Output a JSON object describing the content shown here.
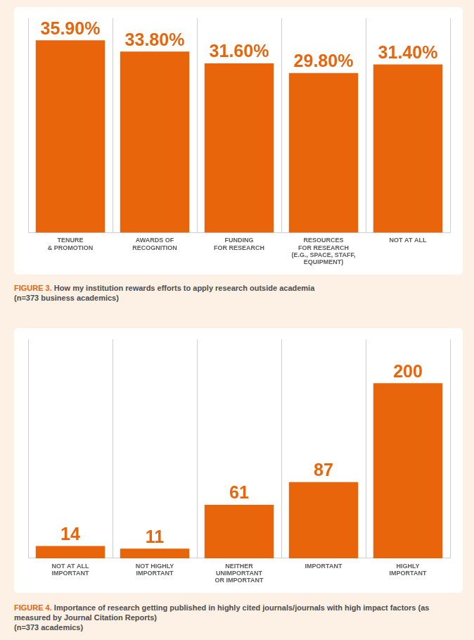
{
  "chart_data": [
    {
      "type": "bar",
      "figure": "FIGURE 3.",
      "title": "How my institution rewards efforts to apply research outside academia",
      "subtitle": "(n=373 business academics)",
      "categories": [
        [
          "TENURE",
          "& PROMOTION"
        ],
        [
          "AWARDS OF",
          "RECOGNITION"
        ],
        [
          "FUNDING",
          "FOR RESEARCH"
        ],
        [
          "RESOURCES",
          "FOR RESEARCH",
          "(E.G., SPACE, STAFF,",
          "EQUIPMENT)"
        ],
        [
          "NOT AT ALL"
        ]
      ],
      "values": [
        35.9,
        33.8,
        31.6,
        29.8,
        31.4
      ],
      "value_labels": [
        "35.90%",
        "33.80%",
        "31.60%",
        "29.80%",
        "31.40%"
      ],
      "color": "#e8650c",
      "ylim": [
        0,
        40
      ],
      "grid": true,
      "data_labels": true,
      "tick_labels": "x"
    },
    {
      "type": "bar",
      "figure": "FIGURE 4.",
      "title": "Importance of research getting published in highly cited journals/journals with high impact factors (as measured by Journal Citation Reports)",
      "subtitle": "(n=373 academics)",
      "categories": [
        [
          "NOT AT ALL",
          "IMPORTANT"
        ],
        [
          "NOT HIGHLY",
          "IMPORTANT"
        ],
        [
          "NEITHER",
          "UNIMPORTANT",
          "OR IMPORTANT"
        ],
        [
          "IMPORTANT"
        ],
        [
          "HIGHLY",
          "IMPORTANT"
        ]
      ],
      "values": [
        14,
        11,
        61,
        87,
        200
      ],
      "color": "#e8650c",
      "ylim": [
        0,
        250
      ],
      "grid": true,
      "data_labels": true,
      "tick_labels": "x"
    }
  ]
}
